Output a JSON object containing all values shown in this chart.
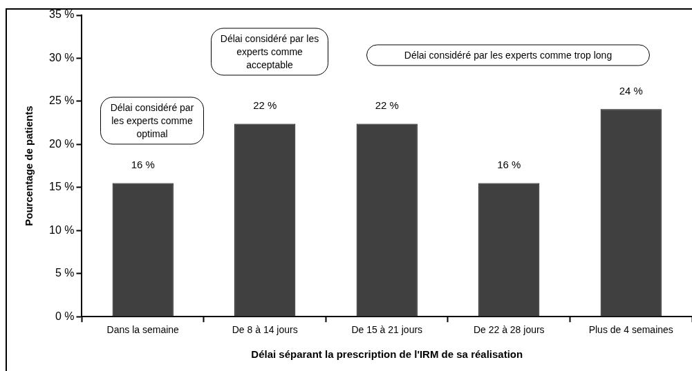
{
  "chart_data": {
    "type": "bar",
    "xlabel": "Délai séparant la prescription de l'IRM de sa réalisation",
    "ylabel": "Pourcentage de patients",
    "categories": [
      "Dans la semaine",
      "De 8 à 14 jours",
      "De 15 à 21 jours",
      "De 22 à 28 jours",
      "Plus de 4 semaines"
    ],
    "values": [
      15.5,
      22.4,
      22.4,
      15.5,
      24.1
    ],
    "value_labels": [
      "16 %",
      "22 %",
      "22 %",
      "16 %",
      "24 %"
    ],
    "color": "#404040",
    "ylim": [
      0,
      35
    ],
    "yticks": [
      {
        "value": 0,
        "label": "0 %"
      },
      {
        "value": 5,
        "label": "5 %"
      },
      {
        "value": 10,
        "label": "10 %"
      },
      {
        "value": 15,
        "label": "15 %"
      },
      {
        "value": 20,
        "label": "20 %"
      },
      {
        "value": 25,
        "label": "25 %"
      },
      {
        "value": 30,
        "label": "30 %"
      },
      {
        "value": 35,
        "label": "35 %"
      }
    ],
    "grid": false,
    "legend": false,
    "annotations": [
      "Délai considéré par les experts comme optimal",
      "Délai considéré par les experts comme acceptable",
      "Délai considéré par les experts comme trop long"
    ]
  }
}
